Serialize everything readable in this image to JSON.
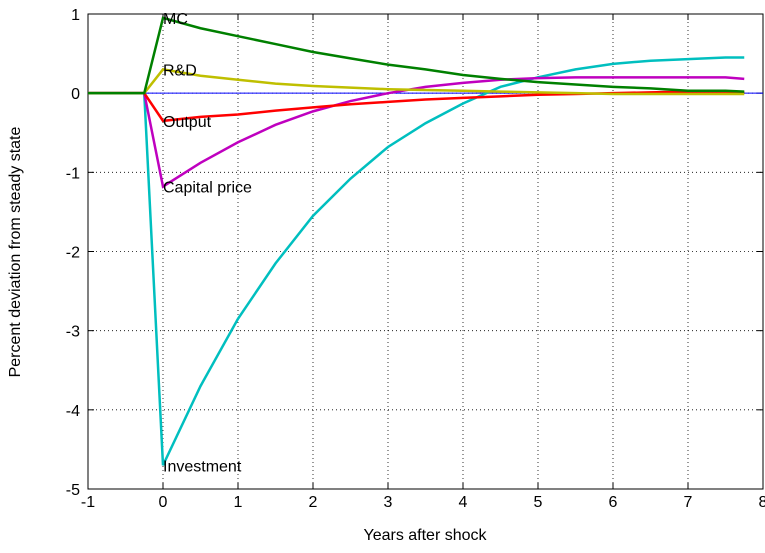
{
  "chart_data": {
    "type": "line",
    "x_label": "Years after shock",
    "y_label": "Percent deviation from steady state",
    "x": [
      -1,
      -0.25,
      0,
      0.5,
      1,
      1.5,
      2,
      2.5,
      3,
      3.5,
      4,
      4.5,
      5,
      5.5,
      6,
      6.5,
      7,
      7.5,
      7.75
    ],
    "series": [
      {
        "name": "Investment",
        "color": "#00bfbf",
        "values": [
          0,
          0,
          -4.7,
          -3.7,
          -2.85,
          -2.15,
          -1.55,
          -1.08,
          -0.68,
          -0.38,
          -0.13,
          0.08,
          0.2,
          0.3,
          0.37,
          0.41,
          0.43,
          0.45,
          0.45
        ]
      },
      {
        "name": "Capital price",
        "color": "#bf00bf",
        "values": [
          0,
          0,
          -1.18,
          -0.88,
          -0.62,
          -0.4,
          -0.23,
          -0.1,
          0,
          0.08,
          0.13,
          0.17,
          0.19,
          0.2,
          0.2,
          0.2,
          0.2,
          0.2,
          0.18
        ]
      },
      {
        "name": "Output",
        "color": "#ff0000",
        "values": [
          0,
          0,
          -0.35,
          -0.3,
          -0.27,
          -0.22,
          -0.18,
          -0.14,
          -0.11,
          -0.08,
          -0.06,
          -0.04,
          -0.02,
          -0.01,
          0,
          0.01,
          0.02,
          0.02,
          0.01
        ]
      },
      {
        "name": "R&D",
        "color": "#bfbf00",
        "values": [
          0,
          0,
          0.3,
          0.22,
          0.17,
          0.12,
          0.09,
          0.07,
          0.05,
          0.04,
          0.03,
          0.02,
          0.01,
          0,
          -0.01,
          -0.01,
          -0.01,
          -0.01,
          -0.01
        ]
      },
      {
        "name": "MC",
        "color": "#008000",
        "values": [
          0,
          0,
          0.95,
          0.82,
          0.72,
          0.62,
          0.52,
          0.44,
          0.36,
          0.3,
          0.23,
          0.18,
          0.14,
          0.11,
          0.08,
          0.06,
          0.03,
          0.03,
          0.02
        ]
      }
    ],
    "xlim": [
      -1,
      8
    ],
    "ylim": [
      -5,
      1
    ],
    "xticks": [
      -1,
      0,
      1,
      2,
      3,
      4,
      5,
      6,
      7,
      8
    ],
    "yticks": [
      -5,
      -4,
      -3,
      -2,
      -1,
      0,
      1
    ],
    "grid": true,
    "zero_line_color": "#0000ff"
  }
}
